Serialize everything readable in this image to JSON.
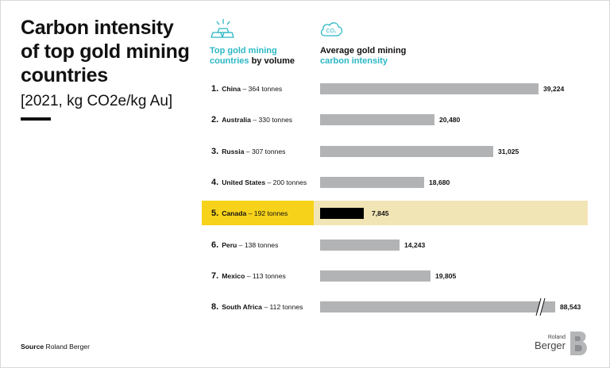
{
  "title": "Carbon intensity of top gold mining countries",
  "subtitle": "[2021, kg CO2e/kg Au]",
  "column_headers": {
    "left_part1": "Top gold mining",
    "left_part2": "countries",
    "left_part3": "by volume",
    "right_part1": "Average gold mining",
    "right_part2": "carbon intensity"
  },
  "icons": {
    "left": "gold-bars-icon",
    "right": "co2-cloud-icon",
    "co2_text": "CO₂"
  },
  "colors": {
    "accent_teal": "#2bb7c4",
    "bar_gray": "#b2b3b5",
    "highlight_bar": "#000000",
    "highlight_row": "#f2e5b5",
    "highlight_label": "#f7d21a"
  },
  "chart_data": {
    "type": "bar",
    "orientation": "horizontal",
    "title": "Carbon intensity of top gold mining countries",
    "subtitle": "[2021, kg CO2e/kg Au]",
    "categories": [
      "China",
      "Australia",
      "Russia",
      "United States",
      "Canada",
      "Peru",
      "Mexico",
      "South Africa"
    ],
    "ranks": [
      "1.",
      "2.",
      "3.",
      "4.",
      "5.",
      "6.",
      "7.",
      "8."
    ],
    "volumes": [
      "364 tonnes",
      "330 tonnes",
      "307 tonnes",
      "200 tonnes",
      "192 tonnes",
      "138 tonnes",
      "113 tonnes",
      "112 tonnes"
    ],
    "values": [
      39224,
      20480,
      31025,
      18680,
      7845,
      14243,
      19805,
      88543
    ],
    "value_labels": [
      "39,224",
      "20,480",
      "31,025",
      "18,680",
      "7,845",
      "14,243",
      "19,805",
      "88,543"
    ],
    "highlighted_category": "Canada",
    "axis_break_category": "South Africa",
    "grid": false,
    "legend": "none"
  },
  "source": {
    "label": "Source",
    "text": "Roland Berger"
  },
  "logo": {
    "small": "Roland",
    "large": "Berger"
  }
}
